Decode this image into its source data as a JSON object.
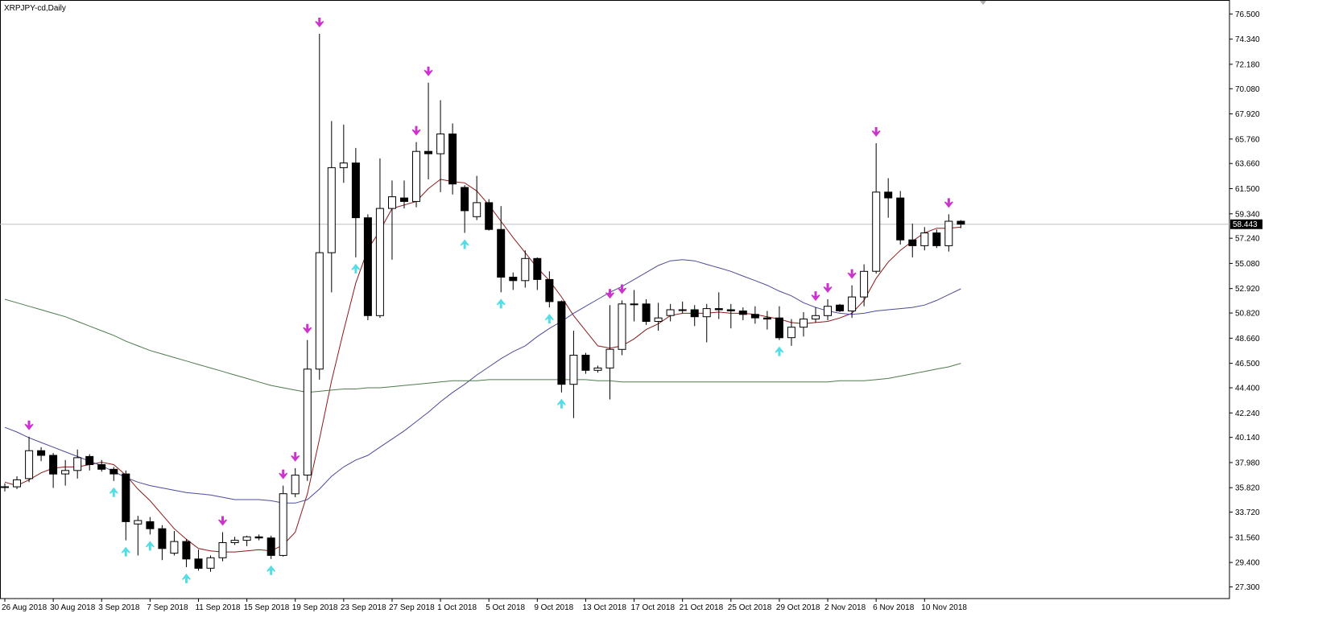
{
  "chart_data": {
    "type": "candlestick",
    "title": "XRPJPY-cd,Daily",
    "current_price_label": "58.443",
    "y_tick_labels": [
      "76.500",
      "74.340",
      "72.180",
      "70.080",
      "67.920",
      "65.760",
      "63.660",
      "61.500",
      "59.340",
      "57.240",
      "55.080",
      "52.920",
      "50.820",
      "48.660",
      "46.500",
      "44.400",
      "42.240",
      "40.140",
      "37.980",
      "35.820",
      "33.720",
      "31.560",
      "29.400",
      "27.300"
    ],
    "ylim": [
      26.3,
      77.7
    ],
    "x_tick_labels": [
      "26 Aug 2018",
      "30 Aug 2018",
      "3 Sep 2018",
      "7 Sep 2018",
      "11 Sep 2018",
      "15 Sep 2018",
      "19 Sep 2018",
      "23 Sep 2018",
      "27 Sep 2018",
      "1 Oct 2018",
      "5 Oct 2018",
      "9 Oct 2018",
      "13 Oct 2018",
      "17 Oct 2018",
      "21 Oct 2018",
      "25 Oct 2018",
      "29 Oct 2018",
      "2 Nov 2018",
      "6 Nov 2018",
      "10 Nov 2018"
    ],
    "candles": [
      {
        "o": 35.9,
        "h": 36.2,
        "l": 35.5,
        "c": 35.9
      },
      {
        "o": 35.9,
        "h": 36.8,
        "l": 35.7,
        "c": 36.5
      },
      {
        "o": 36.6,
        "h": 40.2,
        "l": 36.3,
        "c": 39.0
      },
      {
        "o": 39.0,
        "h": 39.3,
        "l": 38.1,
        "c": 38.6
      },
      {
        "o": 38.6,
        "h": 38.8,
        "l": 35.8,
        "c": 37.0
      },
      {
        "o": 37.0,
        "h": 38.2,
        "l": 36.0,
        "c": 37.3
      },
      {
        "o": 37.3,
        "h": 39.1,
        "l": 36.6,
        "c": 38.4
      },
      {
        "o": 38.5,
        "h": 38.7,
        "l": 37.3,
        "c": 37.8
      },
      {
        "o": 37.8,
        "h": 38.2,
        "l": 37.2,
        "c": 37.4
      },
      {
        "o": 37.4,
        "h": 37.6,
        "l": 36.4,
        "c": 37.0
      },
      {
        "o": 37.0,
        "h": 37.3,
        "l": 31.3,
        "c": 32.9
      },
      {
        "o": 32.7,
        "h": 33.4,
        "l": 30.0,
        "c": 33.0
      },
      {
        "o": 32.9,
        "h": 33.3,
        "l": 31.8,
        "c": 32.3
      },
      {
        "o": 32.3,
        "h": 32.6,
        "l": 29.6,
        "c": 30.6
      },
      {
        "o": 30.2,
        "h": 32.1,
        "l": 30.0,
        "c": 31.2
      },
      {
        "o": 31.2,
        "h": 31.4,
        "l": 29.0,
        "c": 29.7
      },
      {
        "o": 29.7,
        "h": 30.5,
        "l": 28.7,
        "c": 28.9
      },
      {
        "o": 28.9,
        "h": 30.0,
        "l": 28.6,
        "c": 29.8
      },
      {
        "o": 29.8,
        "h": 32.0,
        "l": 29.5,
        "c": 31.1
      },
      {
        "o": 31.1,
        "h": 31.6,
        "l": 30.9,
        "c": 31.3
      },
      {
        "o": 31.3,
        "h": 31.7,
        "l": 30.8,
        "c": 31.6
      },
      {
        "o": 31.6,
        "h": 31.8,
        "l": 31.3,
        "c": 31.5
      },
      {
        "o": 31.5,
        "h": 31.7,
        "l": 29.7,
        "c": 30.0
      },
      {
        "o": 30.0,
        "h": 36.0,
        "l": 29.9,
        "c": 35.3
      },
      {
        "o": 35.3,
        "h": 37.5,
        "l": 35.0,
        "c": 36.9
      },
      {
        "o": 36.9,
        "h": 48.5,
        "l": 36.4,
        "c": 46.0
      },
      {
        "o": 46.0,
        "h": 74.8,
        "l": 45.1,
        "c": 56.0
      },
      {
        "o": 56.0,
        "h": 67.3,
        "l": 52.6,
        "c": 63.3
      },
      {
        "o": 63.3,
        "h": 67.0,
        "l": 62.0,
        "c": 63.7
      },
      {
        "o": 63.7,
        "h": 65.0,
        "l": 55.6,
        "c": 59.0
      },
      {
        "o": 59.0,
        "h": 59.3,
        "l": 50.2,
        "c": 50.6
      },
      {
        "o": 50.6,
        "h": 64.1,
        "l": 50.4,
        "c": 59.8
      },
      {
        "o": 59.8,
        "h": 62.2,
        "l": 55.4,
        "c": 60.8
      },
      {
        "o": 60.7,
        "h": 62.2,
        "l": 59.8,
        "c": 60.4
      },
      {
        "o": 60.4,
        "h": 65.5,
        "l": 59.9,
        "c": 64.7
      },
      {
        "o": 64.7,
        "h": 70.6,
        "l": 62.3,
        "c": 64.5
      },
      {
        "o": 64.5,
        "h": 69.1,
        "l": 61.2,
        "c": 66.2
      },
      {
        "o": 66.2,
        "h": 67.1,
        "l": 61.0,
        "c": 61.9
      },
      {
        "o": 61.6,
        "h": 61.8,
        "l": 57.7,
        "c": 59.6
      },
      {
        "o": 59.1,
        "h": 62.6,
        "l": 58.8,
        "c": 60.3
      },
      {
        "o": 60.3,
        "h": 60.6,
        "l": 57.9,
        "c": 58.0
      },
      {
        "o": 58.0,
        "h": 60.0,
        "l": 52.6,
        "c": 53.9
      },
      {
        "o": 53.9,
        "h": 54.3,
        "l": 52.8,
        "c": 53.6
      },
      {
        "o": 53.6,
        "h": 56.2,
        "l": 53.0,
        "c": 55.5
      },
      {
        "o": 55.5,
        "h": 55.6,
        "l": 52.8,
        "c": 53.7
      },
      {
        "o": 53.7,
        "h": 54.4,
        "l": 51.3,
        "c": 51.8
      },
      {
        "o": 51.8,
        "h": 51.9,
        "l": 44.0,
        "c": 44.7
      },
      {
        "o": 44.7,
        "h": 49.3,
        "l": 41.8,
        "c": 47.2
      },
      {
        "o": 47.2,
        "h": 47.4,
        "l": 45.6,
        "c": 45.9
      },
      {
        "o": 45.9,
        "h": 46.3,
        "l": 45.7,
        "c": 46.1
      },
      {
        "o": 46.1,
        "h": 51.5,
        "l": 43.4,
        "c": 47.7
      },
      {
        "o": 47.7,
        "h": 51.9,
        "l": 47.2,
        "c": 51.6
      },
      {
        "o": 51.6,
        "h": 52.8,
        "l": 50.1,
        "c": 51.6
      },
      {
        "o": 51.6,
        "h": 52.0,
        "l": 49.8,
        "c": 50.1
      },
      {
        "o": 50.1,
        "h": 51.7,
        "l": 49.3,
        "c": 50.4
      },
      {
        "o": 50.6,
        "h": 51.6,
        "l": 50.1,
        "c": 51.1
      },
      {
        "o": 51.1,
        "h": 51.8,
        "l": 50.8,
        "c": 51.1
      },
      {
        "o": 51.1,
        "h": 51.5,
        "l": 49.7,
        "c": 50.5
      },
      {
        "o": 50.5,
        "h": 51.6,
        "l": 48.3,
        "c": 51.2
      },
      {
        "o": 51.2,
        "h": 52.6,
        "l": 50.3,
        "c": 51.1
      },
      {
        "o": 51.1,
        "h": 51.6,
        "l": 49.5,
        "c": 51.0
      },
      {
        "o": 51.0,
        "h": 51.3,
        "l": 50.2,
        "c": 50.7
      },
      {
        "o": 50.7,
        "h": 51.4,
        "l": 49.9,
        "c": 50.4
      },
      {
        "o": 50.4,
        "h": 51.0,
        "l": 49.4,
        "c": 50.3
      },
      {
        "o": 50.4,
        "h": 51.4,
        "l": 48.5,
        "c": 48.7
      },
      {
        "o": 48.7,
        "h": 50.3,
        "l": 48.0,
        "c": 49.6
      },
      {
        "o": 49.6,
        "h": 50.9,
        "l": 48.8,
        "c": 50.3
      },
      {
        "o": 50.3,
        "h": 51.3,
        "l": 50.0,
        "c": 50.6
      },
      {
        "o": 50.6,
        "h": 52.0,
        "l": 50.2,
        "c": 51.4
      },
      {
        "o": 51.5,
        "h": 51.6,
        "l": 50.9,
        "c": 51.0
      },
      {
        "o": 51.0,
        "h": 53.2,
        "l": 50.4,
        "c": 52.2
      },
      {
        "o": 52.2,
        "h": 55.0,
        "l": 51.4,
        "c": 54.4
      },
      {
        "o": 54.4,
        "h": 65.4,
        "l": 54.2,
        "c": 61.2
      },
      {
        "o": 61.2,
        "h": 62.4,
        "l": 59.0,
        "c": 60.7
      },
      {
        "o": 60.7,
        "h": 61.3,
        "l": 56.7,
        "c": 57.1
      },
      {
        "o": 57.1,
        "h": 58.5,
        "l": 55.6,
        "c": 56.6
      },
      {
        "o": 56.6,
        "h": 58.2,
        "l": 56.2,
        "c": 57.7
      },
      {
        "o": 57.7,
        "h": 58.0,
        "l": 56.4,
        "c": 56.6
      },
      {
        "o": 56.6,
        "h": 59.3,
        "l": 56.1,
        "c": 58.7
      },
      {
        "o": 58.7,
        "h": 58.8,
        "l": 58.1,
        "c": 58.443
      }
    ],
    "series": [
      {
        "values": [
          36.3,
          36.0,
          36.5,
          37.1,
          37.5,
          37.6,
          37.6,
          37.8,
          38.0,
          37.8,
          36.9,
          35.7,
          34.7,
          33.5,
          32.3,
          31.4,
          30.6,
          30.4,
          30.3,
          30.3,
          30.4,
          30.5,
          30.4,
          30.9,
          32.0,
          35.3,
          40.0,
          45.0,
          49.3,
          53.4,
          56.3,
          57.9,
          59.8,
          60.1,
          60.4,
          61.5,
          62.3,
          62.1,
          62.0,
          61.3,
          60.1,
          58.7,
          57.3,
          56.0,
          54.7,
          53.6,
          52.2,
          50.6,
          49.3,
          48.0,
          47.8,
          48.0,
          48.6,
          49.4,
          49.9,
          50.6,
          50.8,
          50.8,
          50.8,
          50.9,
          50.8,
          50.8,
          50.7,
          50.5,
          50.3,
          50.0,
          49.9,
          50.0,
          50.1,
          50.4,
          50.8,
          51.9,
          53.8,
          55.2,
          56.2,
          57.0,
          57.7,
          58.1,
          58.1,
          58.2
        ]
      },
      {
        "values": [
          41.0,
          40.6,
          40.1,
          39.7,
          39.3,
          38.9,
          38.5,
          38.1,
          37.7,
          37.2,
          36.7,
          36.3,
          36.0,
          35.8,
          35.6,
          35.4,
          35.3,
          35.2,
          35.0,
          34.8,
          34.8,
          34.8,
          34.7,
          34.5,
          34.5,
          34.8,
          35.7,
          36.8,
          37.6,
          38.2,
          38.6,
          39.3,
          40.0,
          40.7,
          41.5,
          42.3,
          43.2,
          44.0,
          44.7,
          45.5,
          46.2,
          46.9,
          47.5,
          48.0,
          48.8,
          49.5,
          50.1,
          50.8,
          51.4,
          52.0,
          52.6,
          53.1,
          53.7,
          54.3,
          54.9,
          55.3,
          55.4,
          55.3,
          55.0,
          54.7,
          54.4,
          54.0,
          53.6,
          53.2,
          52.7,
          52.3,
          51.7,
          51.3,
          51.0,
          50.8,
          50.7,
          50.8,
          51.0,
          51.1,
          51.2,
          51.3,
          51.5,
          51.9,
          52.4,
          52.9
        ]
      },
      {
        "values": [
          52.0,
          51.7,
          51.4,
          51.1,
          50.8,
          50.5,
          50.1,
          49.7,
          49.3,
          48.9,
          48.4,
          48.0,
          47.6,
          47.3,
          47.0,
          46.7,
          46.4,
          46.1,
          45.8,
          45.5,
          45.2,
          44.9,
          44.6,
          44.4,
          44.2,
          44.0,
          44.1,
          44.2,
          44.3,
          44.3,
          44.4,
          44.4,
          44.5,
          44.6,
          44.7,
          44.8,
          44.9,
          45.0,
          45.0,
          45.0,
          45.1,
          45.1,
          45.1,
          45.1,
          45.1,
          45.1,
          45.1,
          45.1,
          45.1,
          45.0,
          45.0,
          44.9,
          44.9,
          44.9,
          44.9,
          44.9,
          44.9,
          44.9,
          44.9,
          44.9,
          44.9,
          44.9,
          44.9,
          44.9,
          44.9,
          44.9,
          44.9,
          44.9,
          44.9,
          45.0,
          45.0,
          45.0,
          45.1,
          45.2,
          45.4,
          45.6,
          45.8,
          46.0,
          46.2,
          46.5
        ]
      }
    ],
    "up_arrows": [
      9,
      10,
      12,
      15,
      22,
      29,
      38,
      41,
      45,
      46,
      64
    ],
    "down_arrows": [
      2,
      18,
      23,
      24,
      25,
      26,
      34,
      35,
      50,
      51,
      67,
      68,
      70,
      72,
      78
    ]
  },
  "colors": {
    "background": "#ffffff",
    "candle_up_fill": "#ffffff",
    "candle_down_fill": "#000000",
    "candle_outline": "#000000",
    "ma_fast": "#8b1a1a",
    "ma_mid": "#4b4b9c",
    "ma_slow": "#4e7a4e",
    "arrow_down": "#cc33cc",
    "arrow_up": "#55dde6",
    "price_line": "#c0c0c0",
    "axis_line": "#000000",
    "price_label_bg": "#000000",
    "price_label_text": "#ffffff"
  }
}
